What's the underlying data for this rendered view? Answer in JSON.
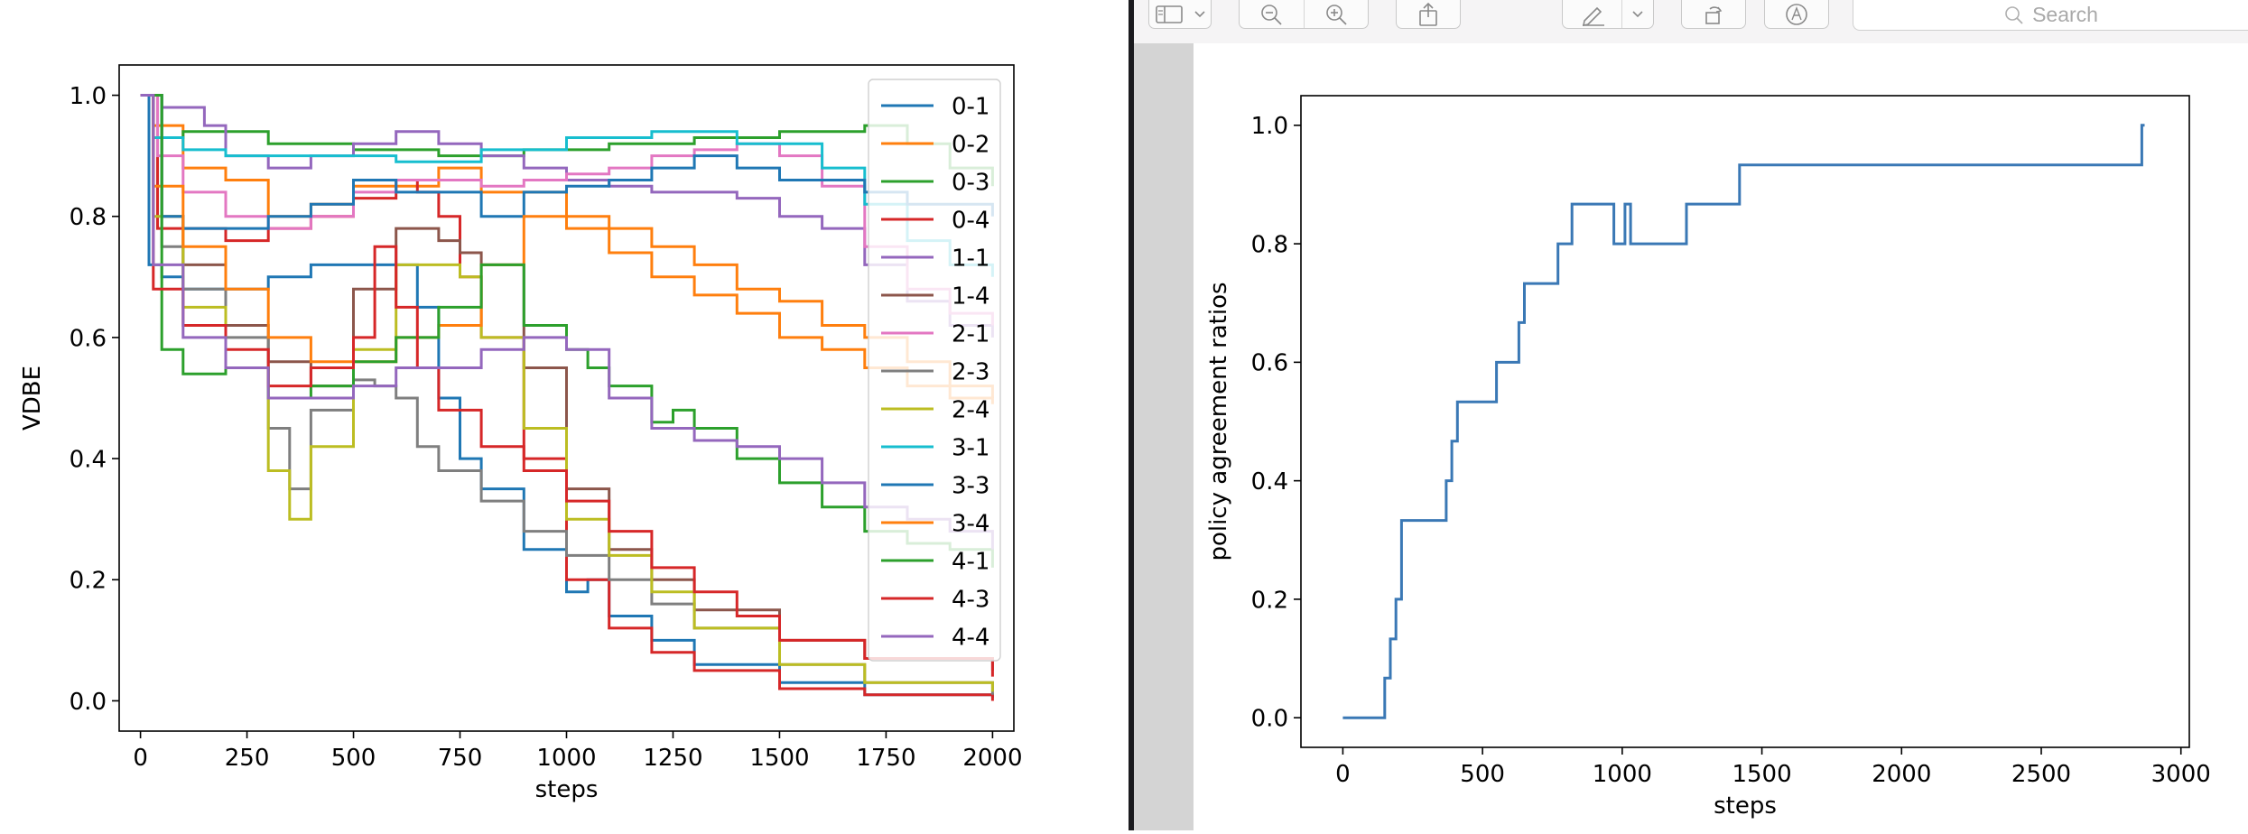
{
  "left_chart": {
    "chart_data": {
      "type": "line",
      "xlabel": "steps",
      "ylabel": "VDBE",
      "xlim": [
        -50,
        2050
      ],
      "ylim": [
        -0.05,
        1.05
      ],
      "xticks": [
        0,
        250,
        500,
        750,
        1000,
        1250,
        1500,
        1750,
        2000
      ],
      "yticks": [
        0.0,
        0.2,
        0.4,
        0.6,
        0.8,
        1.0
      ],
      "legend_position": "upper-right",
      "series": [
        {
          "name": "0-1",
          "color": "#1f77b4",
          "x": [
            0,
            20,
            50,
            100,
            200,
            300,
            400,
            500,
            600,
            650,
            700,
            750,
            800,
            900,
            1000,
            1050,
            1100,
            1200,
            1300,
            1500,
            1700,
            2000
          ],
          "y": [
            1.0,
            0.72,
            0.7,
            0.68,
            0.68,
            0.7,
            0.72,
            0.72,
            0.72,
            0.65,
            0.5,
            0.4,
            0.35,
            0.25,
            0.18,
            0.2,
            0.14,
            0.1,
            0.06,
            0.03,
            0.01,
            0.005
          ]
        },
        {
          "name": "0-2",
          "color": "#ff7f0e",
          "x": [
            0,
            30,
            100,
            200,
            300,
            400,
            500,
            700,
            800,
            1000,
            1100,
            1200,
            1300,
            1400,
            1500,
            1600,
            1700,
            1800,
            1900,
            2000
          ],
          "y": [
            1.0,
            0.95,
            0.88,
            0.86,
            0.8,
            0.82,
            0.85,
            0.88,
            0.84,
            0.8,
            0.78,
            0.75,
            0.72,
            0.68,
            0.66,
            0.62,
            0.6,
            0.56,
            0.52,
            0.5
          ]
        },
        {
          "name": "0-3",
          "color": "#2ca02c",
          "x": [
            0,
            40,
            100,
            300,
            500,
            700,
            900,
            1100,
            1300,
            1500,
            1700,
            1800,
            1900,
            2000
          ],
          "y": [
            1.0,
            0.93,
            0.94,
            0.92,
            0.91,
            0.9,
            0.91,
            0.92,
            0.93,
            0.94,
            0.95,
            0.92,
            0.88,
            0.85
          ]
        },
        {
          "name": "0-4",
          "color": "#d62728",
          "x": [
            0,
            40,
            100,
            200,
            300,
            400,
            500,
            600,
            650,
            700,
            750,
            800,
            900,
            1000,
            1100,
            1200,
            1300,
            1500,
            1700,
            2000
          ],
          "y": [
            1.0,
            0.78,
            0.78,
            0.76,
            0.78,
            0.8,
            0.83,
            0.86,
            0.84,
            0.8,
            0.7,
            0.6,
            0.4,
            0.2,
            0.12,
            0.08,
            0.05,
            0.02,
            0.01,
            0.0
          ]
        },
        {
          "name": "1-1",
          "color": "#9467bd",
          "x": [
            0,
            50,
            150,
            200,
            300,
            400,
            500,
            600,
            700,
            800,
            900,
            1000,
            1100,
            1200,
            1300,
            1400,
            1500,
            1600,
            1700,
            1800,
            1900,
            2000
          ],
          "y": [
            1.0,
            0.98,
            0.95,
            0.9,
            0.88,
            0.9,
            0.92,
            0.94,
            0.92,
            0.9,
            0.88,
            0.86,
            0.85,
            0.84,
            0.84,
            0.83,
            0.8,
            0.78,
            0.72,
            0.66,
            0.62,
            0.6
          ]
        },
        {
          "name": "1-4",
          "color": "#8c564b",
          "x": [
            0,
            50,
            100,
            200,
            300,
            400,
            500,
            600,
            700,
            750,
            800,
            900,
            1000,
            1100,
            1200,
            1300,
            1500,
            1700,
            2000
          ],
          "y": [
            1.0,
            0.8,
            0.72,
            0.62,
            0.56,
            0.52,
            0.68,
            0.78,
            0.76,
            0.74,
            0.72,
            0.55,
            0.35,
            0.25,
            0.2,
            0.15,
            0.1,
            0.07,
            0.05
          ]
        },
        {
          "name": "2-1",
          "color": "#e377c2",
          "x": [
            0,
            40,
            100,
            200,
            300,
            400,
            500,
            600,
            700,
            800,
            900,
            1000,
            1100,
            1200,
            1300,
            1400,
            1500,
            1600,
            1700,
            1800,
            1900,
            2000
          ],
          "y": [
            1.0,
            0.9,
            0.84,
            0.8,
            0.78,
            0.8,
            0.84,
            0.86,
            0.86,
            0.85,
            0.86,
            0.87,
            0.88,
            0.9,
            0.91,
            0.92,
            0.9,
            0.85,
            0.75,
            0.68,
            0.64,
            0.62
          ]
        },
        {
          "name": "2-3",
          "color": "#7f7f7f",
          "x": [
            0,
            50,
            100,
            200,
            300,
            350,
            400,
            500,
            550,
            600,
            650,
            700,
            800,
            900,
            1000,
            1100,
            1200,
            1300,
            1500,
            1700,
            2000
          ],
          "y": [
            1.0,
            0.75,
            0.68,
            0.6,
            0.45,
            0.35,
            0.48,
            0.53,
            0.52,
            0.5,
            0.42,
            0.38,
            0.33,
            0.28,
            0.24,
            0.2,
            0.16,
            0.12,
            0.06,
            0.03,
            0.01
          ]
        },
        {
          "name": "2-4",
          "color": "#bcbd22",
          "x": [
            0,
            30,
            100,
            200,
            300,
            350,
            400,
            500,
            600,
            700,
            750,
            800,
            900,
            1000,
            1100,
            1200,
            1300,
            1500,
            1700,
            2000
          ],
          "y": [
            1.0,
            0.8,
            0.65,
            0.55,
            0.38,
            0.3,
            0.42,
            0.58,
            0.72,
            0.72,
            0.7,
            0.6,
            0.45,
            0.3,
            0.24,
            0.18,
            0.12,
            0.06,
            0.03,
            0.015
          ]
        },
        {
          "name": "3-1",
          "color": "#17becf",
          "x": [
            0,
            30,
            100,
            200,
            400,
            600,
            800,
            1000,
            1200,
            1400,
            1600,
            1700,
            1800,
            1900,
            2000
          ],
          "y": [
            1.0,
            0.93,
            0.91,
            0.9,
            0.9,
            0.89,
            0.91,
            0.93,
            0.94,
            0.92,
            0.88,
            0.82,
            0.76,
            0.72,
            0.7
          ]
        },
        {
          "name": "3-3",
          "color": "#1f77b4",
          "x": [
            0,
            50,
            100,
            200,
            300,
            400,
            500,
            600,
            800,
            900,
            1000,
            1100,
            1200,
            1300,
            1400,
            1500,
            1600,
            1700,
            1800,
            2000
          ],
          "y": [
            1.0,
            0.8,
            0.78,
            0.78,
            0.8,
            0.82,
            0.86,
            0.84,
            0.8,
            0.84,
            0.85,
            0.86,
            0.88,
            0.9,
            0.88,
            0.86,
            0.86,
            0.84,
            0.82,
            0.8
          ]
        },
        {
          "name": "3-4",
          "color": "#ff7f0e",
          "x": [
            0,
            30,
            100,
            200,
            300,
            400,
            500,
            600,
            650,
            700,
            800,
            900,
            1000,
            1100,
            1200,
            1300,
            1400,
            1500,
            1600,
            1700,
            1800,
            1900,
            2000
          ],
          "y": [
            1.0,
            0.85,
            0.75,
            0.68,
            0.6,
            0.56,
            0.56,
            0.6,
            0.6,
            0.62,
            0.72,
            0.8,
            0.78,
            0.74,
            0.7,
            0.67,
            0.64,
            0.6,
            0.58,
            0.55,
            0.52,
            0.5,
            0.49
          ]
        },
        {
          "name": "4-1",
          "color": "#2ca02c",
          "x": [
            0,
            50,
            100,
            200,
            300,
            400,
            500,
            600,
            700,
            800,
            850,
            900,
            1000,
            1050,
            1100,
            1200,
            1250,
            1300,
            1400,
            1500,
            1600,
            1700,
            1800,
            1900,
            2000
          ],
          "y": [
            1.0,
            0.58,
            0.54,
            0.55,
            0.5,
            0.52,
            0.56,
            0.6,
            0.65,
            0.72,
            0.72,
            0.62,
            0.58,
            0.55,
            0.52,
            0.46,
            0.48,
            0.45,
            0.4,
            0.36,
            0.32,
            0.28,
            0.26,
            0.25,
            0.22
          ]
        },
        {
          "name": "4-3",
          "color": "#d62728",
          "x": [
            0,
            30,
            100,
            200,
            300,
            400,
            500,
            550,
            600,
            650,
            700,
            800,
            900,
            1000,
            1100,
            1200,
            1300,
            1400,
            1500,
            1700,
            2000
          ],
          "y": [
            1.0,
            0.68,
            0.62,
            0.58,
            0.52,
            0.55,
            0.6,
            0.75,
            0.65,
            0.55,
            0.48,
            0.42,
            0.38,
            0.33,
            0.28,
            0.22,
            0.18,
            0.14,
            0.1,
            0.07,
            0.04
          ]
        },
        {
          "name": "4-4",
          "color": "#9467bd",
          "x": [
            0,
            30,
            100,
            200,
            300,
            400,
            500,
            600,
            700,
            800,
            900,
            1000,
            1100,
            1200,
            1300,
            1400,
            1500,
            1600,
            1700,
            1800,
            1900,
            2000
          ],
          "y": [
            1.0,
            0.72,
            0.6,
            0.55,
            0.5,
            0.5,
            0.52,
            0.55,
            0.55,
            0.58,
            0.6,
            0.58,
            0.5,
            0.45,
            0.43,
            0.42,
            0.4,
            0.36,
            0.32,
            0.3,
            0.28,
            0.25
          ]
        }
      ]
    }
  },
  "right_chart": {
    "chart_data": {
      "type": "line",
      "xlabel": "steps",
      "ylabel": "policy agreement ratios",
      "xlim": [
        -150,
        3030
      ],
      "ylim": [
        -0.05,
        1.05
      ],
      "xticks": [
        0,
        500,
        1000,
        1500,
        2000,
        2500,
        3000
      ],
      "yticks": [
        0.0,
        0.2,
        0.4,
        0.6,
        0.8,
        1.0
      ],
      "series": [
        {
          "name": "",
          "color": "#3a78b5",
          "x": [
            0,
            150,
            150,
            170,
            170,
            190,
            190,
            210,
            210,
            370,
            370,
            390,
            390,
            410,
            410,
            550,
            550,
            630,
            630,
            650,
            650,
            770,
            770,
            820,
            820,
            970,
            970,
            1010,
            1010,
            1030,
            1030,
            1230,
            1230,
            1420,
            1420,
            2860,
            2860,
            2870
          ],
          "y": [
            0.0,
            0.0,
            0.067,
            0.067,
            0.133,
            0.133,
            0.2,
            0.2,
            0.333,
            0.333,
            0.4,
            0.4,
            0.467,
            0.467,
            0.533,
            0.533,
            0.6,
            0.6,
            0.667,
            0.667,
            0.733,
            0.733,
            0.8,
            0.8,
            0.867,
            0.867,
            0.8,
            0.8,
            0.867,
            0.867,
            0.8,
            0.8,
            0.867,
            0.867,
            0.933,
            0.933,
            1.0,
            1.0
          ]
        }
      ]
    }
  },
  "toolbar": {
    "search_placeholder": "Search",
    "icons": [
      "sidebar-icon",
      "chevron-down-icon",
      "zoom-out-icon",
      "zoom-in-icon",
      "share-icon",
      "markup-pen-icon",
      "chevron-down-icon",
      "rotate-icon",
      "annotate-icon",
      "search-icon"
    ]
  }
}
